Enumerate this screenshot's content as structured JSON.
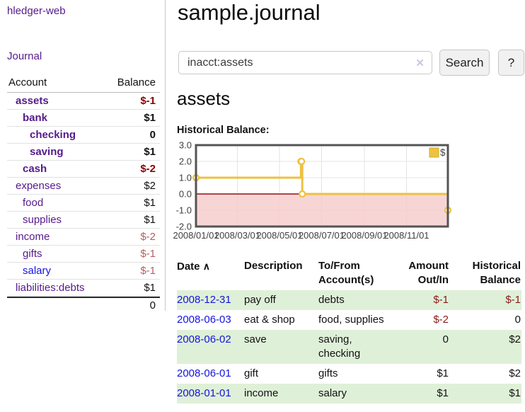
{
  "colors": {
    "purple": "#551a8b",
    "blue": "#1414e0",
    "neg-strong": "#8b0000",
    "neg-light": "#b75f5f",
    "table-neg": "#8b1a1a",
    "stripe-green": "#dff0d8",
    "series-yellow": "#edc240"
  },
  "app": {
    "title": "hledger-web"
  },
  "sidebar": {
    "journal_link": "Journal",
    "table": {
      "col_account": "Account",
      "col_balance": "Balance",
      "rows": [
        {
          "label": "assets",
          "balance": "$-1",
          "indent": 1,
          "bold": true,
          "label_color": "purple",
          "balance_color": "neg-strong"
        },
        {
          "label": "bank",
          "balance": "$1",
          "indent": 2,
          "bold": true,
          "label_color": "purple",
          "balance_color": "default"
        },
        {
          "label": "checking",
          "balance": "0",
          "indent": 3,
          "bold": true,
          "label_color": "purple",
          "balance_color": "default"
        },
        {
          "label": "saving",
          "balance": "$1",
          "indent": 3,
          "bold": true,
          "label_color": "purple",
          "balance_color": "default"
        },
        {
          "label": "cash",
          "balance": "$-2",
          "indent": 2,
          "bold": true,
          "label_color": "purple",
          "balance_color": "neg-strong"
        },
        {
          "label": "expenses",
          "balance": "$2",
          "indent": 1,
          "bold": false,
          "label_color": "purple",
          "balance_color": "default"
        },
        {
          "label": "food",
          "balance": "$1",
          "indent": 2,
          "bold": false,
          "label_color": "purple",
          "balance_color": "default"
        },
        {
          "label": "supplies",
          "balance": "$1",
          "indent": 2,
          "bold": false,
          "label_color": "purple",
          "balance_color": "default"
        },
        {
          "label": "income",
          "balance": "$-2",
          "indent": 1,
          "bold": false,
          "label_color": "purple",
          "balance_color": "neg-light"
        },
        {
          "label": "gifts",
          "balance": "$-1",
          "indent": 2,
          "bold": false,
          "label_color": "purple",
          "balance_color": "neg-light"
        },
        {
          "label": "salary",
          "balance": "$-1",
          "indent": 2,
          "bold": false,
          "label_color": "blue",
          "balance_color": "neg-light"
        },
        {
          "label": "liabilities:debts",
          "balance": "$1",
          "indent": 1,
          "bold": false,
          "label_color": "purple",
          "balance_color": "default"
        }
      ],
      "total": "0"
    }
  },
  "main": {
    "title": "sample.journal",
    "search": {
      "value": "inacct:assets",
      "clear_icon": "✕",
      "button_label": "Search",
      "help_label": "?"
    },
    "account_title": "assets",
    "chart_title": "Historical Balance:"
  },
  "chart_data": {
    "type": "line-step",
    "title": "Historical Balance:",
    "legend": "$",
    "legend_position": "top-right",
    "grid": true,
    "series": [
      {
        "name": "$",
        "color": "#edc240",
        "points": [
          {
            "date": "2008-01-01",
            "value": 1
          },
          {
            "date": "2008-06-01",
            "value": 2
          },
          {
            "date": "2008-06-02",
            "value": 2
          },
          {
            "date": "2008-06-03",
            "value": 0
          },
          {
            "date": "2008-12-31",
            "value": -1
          }
        ]
      }
    ],
    "x_start": "2008-01-01",
    "x_end": "2008-12-31",
    "x_ticks": [
      {
        "date": "2008-01-01",
        "label": "2008/01/01"
      },
      {
        "date": "2008-03-01",
        "label": "2008/03/01"
      },
      {
        "date": "2008-05-01",
        "label": "2008/05/01"
      },
      {
        "date": "2008-07-01",
        "label": "2008/07/01"
      },
      {
        "date": "2008-09-01",
        "label": "2008/09/01"
      },
      {
        "date": "2008-11-01",
        "label": "2008/11/01"
      }
    ],
    "y_ticks": [
      "3.0",
      "2.0",
      "1.0",
      "0.0",
      "-1.0",
      "-2.0"
    ],
    "ylim": [
      -2,
      3
    ],
    "negative_region_fill": "#f6caca",
    "zero_line_color": "#8f1010"
  },
  "register": {
    "sort_icon": "∧",
    "columns": [
      {
        "label": "Date",
        "align": "left"
      },
      {
        "label": "Description",
        "align": "left"
      },
      {
        "label": "To/From Account(s)",
        "align": "left"
      },
      {
        "label": "Amount Out/In",
        "align": "right"
      },
      {
        "label": "Historical Balance",
        "align": "right"
      }
    ],
    "rows": [
      {
        "date": "2008-12-31",
        "description": "pay off",
        "accounts": "debts",
        "amount": "$-1",
        "balance": "$-1",
        "amount_negative": true,
        "balance_negative": true
      },
      {
        "date": "2008-06-03",
        "description": "eat & shop",
        "accounts": "food, supplies",
        "amount": "$-2",
        "balance": "0",
        "amount_negative": true,
        "balance_negative": false
      },
      {
        "date": "2008-06-02",
        "description": "save",
        "accounts": "saving, checking",
        "amount": "0",
        "balance": "$2",
        "amount_negative": false,
        "balance_negative": false
      },
      {
        "date": "2008-06-01",
        "description": "gift",
        "accounts": "gifts",
        "amount": "$1",
        "balance": "$2",
        "amount_negative": false,
        "balance_negative": false
      },
      {
        "date": "2008-01-01",
        "description": "income",
        "accounts": "salary",
        "amount": "$1",
        "balance": "$1",
        "amount_negative": false,
        "balance_negative": false
      }
    ]
  }
}
